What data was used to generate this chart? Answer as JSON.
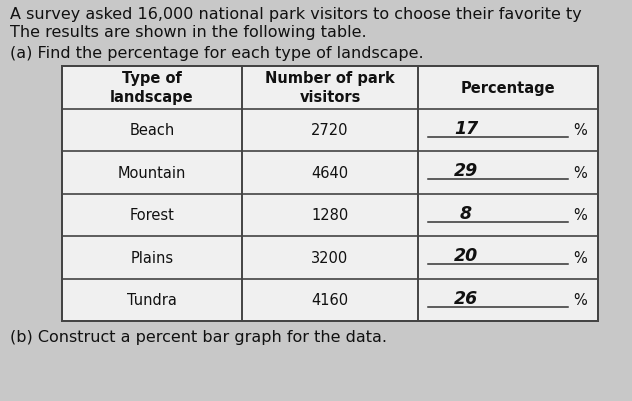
{
  "title_line1": "A survey asked 16,000 national park visitors to choose their favorite ty",
  "title_line2": "The results are shown in the following table.",
  "part_a_label": "(a) Find the percentage for each type of landscape.",
  "part_b_label": "(b) Construct a percent bar graph for the data.",
  "col_headers": [
    "Type of\nlandscape",
    "Number of park\nvisitors",
    "Percentage"
  ],
  "landscape_types": [
    "Beach",
    "Mountain",
    "Forest",
    "Plains",
    "Tundra"
  ],
  "visitors": [
    "2720",
    "4640",
    "1280",
    "3200",
    "4160"
  ],
  "percentages": [
    "17",
    "29",
    "8",
    "20",
    "26"
  ],
  "background_color": "#c8c8c8",
  "table_bg": "#f0f0f0",
  "text_color": "#111111",
  "header_fontsize": 10.5,
  "body_fontsize": 10.5,
  "title_fontsize": 11.5
}
